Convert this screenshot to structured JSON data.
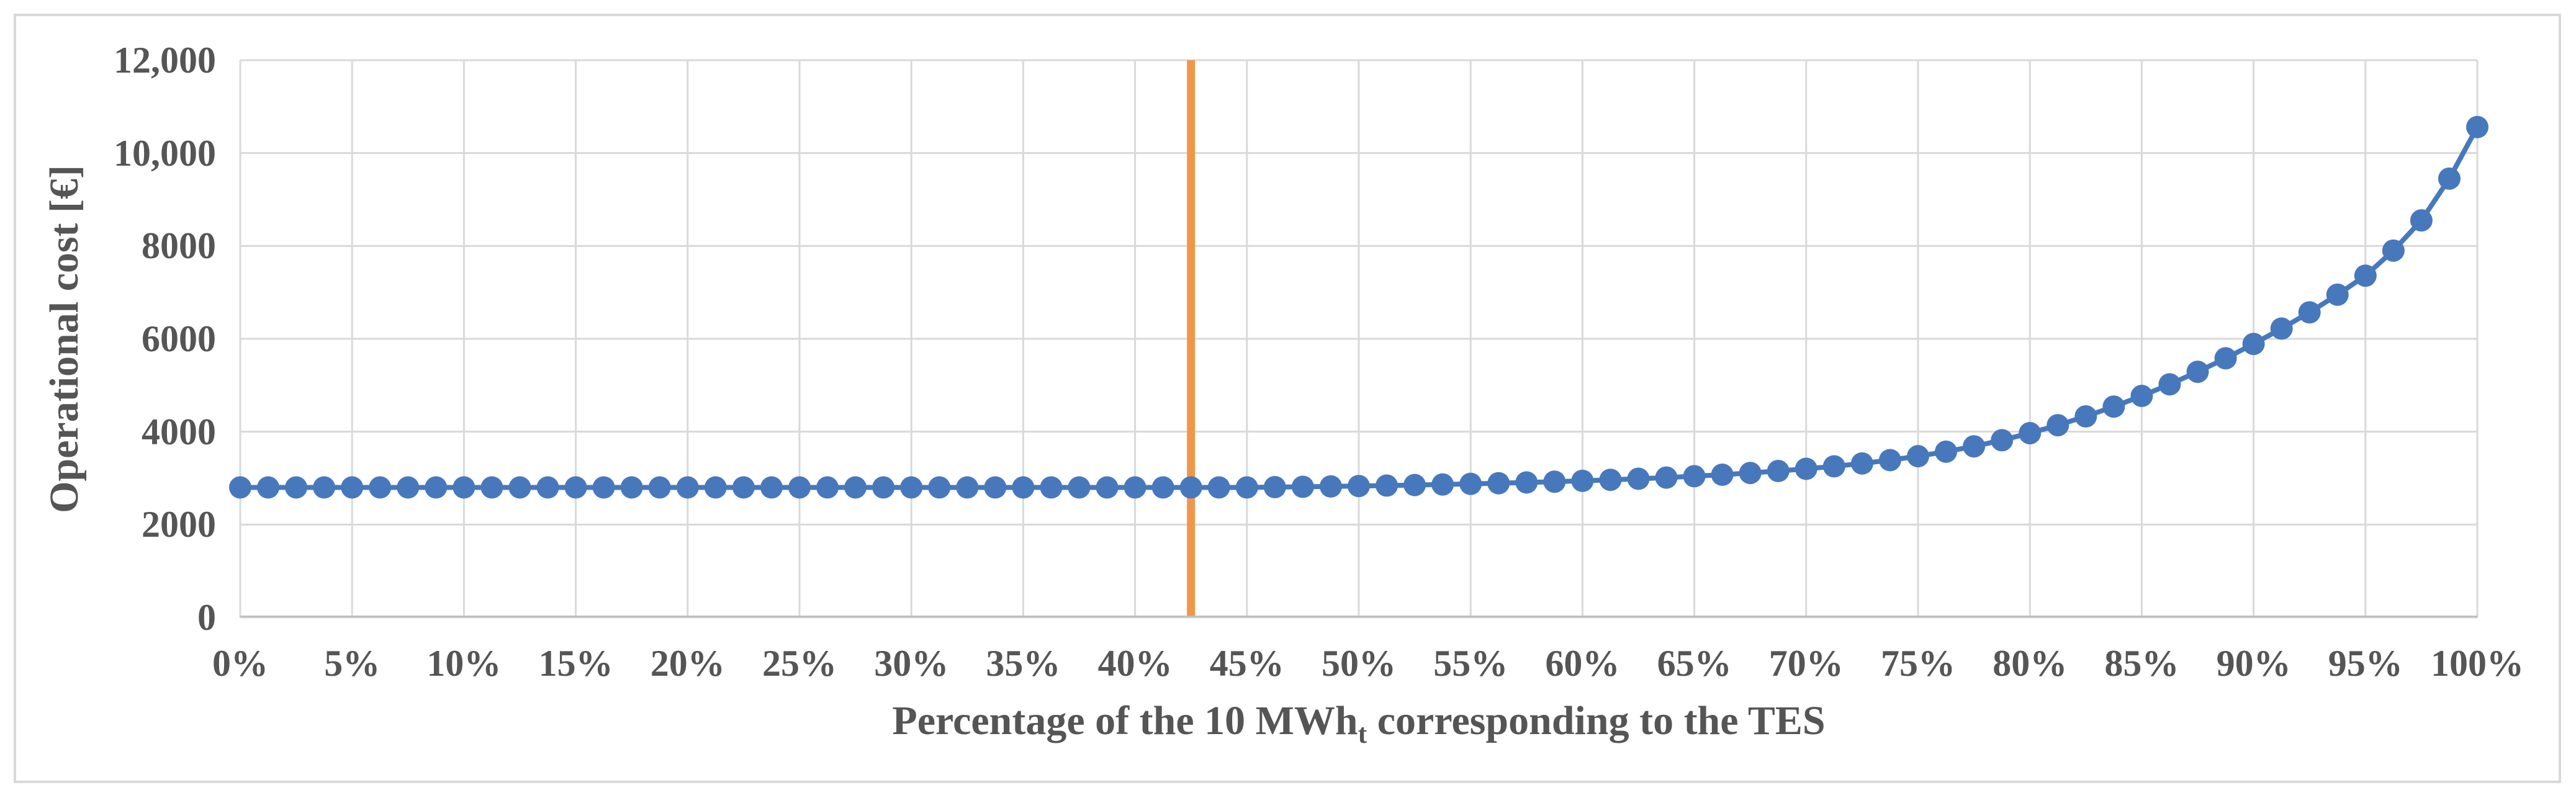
{
  "chart_data": {
    "type": "line",
    "title": "",
    "ylabel": "Operational cost [€]",
    "xlabel": {
      "text_before_sub": "Percentage of the 10 MWh",
      "subscript": "t",
      "text_after_sub": " corresponding to the TES"
    },
    "xlim": [
      0,
      100
    ],
    "ylim": [
      0,
      12000
    ],
    "grid": true,
    "legend": "none",
    "x": [
      0,
      1.25,
      2.5,
      3.75,
      5,
      6.25,
      7.5,
      8.75,
      10,
      11.25,
      12.5,
      13.75,
      15,
      16.25,
      17.5,
      18.75,
      20,
      21.25,
      22.5,
      23.75,
      25,
      26.25,
      27.5,
      28.75,
      30,
      31.25,
      32.5,
      33.75,
      35,
      36.25,
      37.5,
      38.75,
      40,
      41.25,
      42.5,
      43.75,
      45,
      46.25,
      47.5,
      48.75,
      50,
      51.25,
      52.5,
      53.75,
      55,
      56.25,
      57.5,
      58.75,
      60,
      61.25,
      62.5,
      63.75,
      65,
      66.25,
      67.5,
      68.75,
      70,
      71.25,
      72.5,
      73.75,
      75,
      76.25,
      77.5,
      78.75,
      80,
      81.25,
      82.5,
      83.75,
      85,
      86.25,
      87.5,
      88.75,
      90,
      91.25,
      92.5,
      93.75,
      95,
      96.25,
      97.5,
      98.75,
      100
    ],
    "values": [
      2800,
      2800,
      2800,
      2800,
      2800,
      2800,
      2800,
      2800,
      2800,
      2800,
      2800,
      2800,
      2800,
      2800,
      2800,
      2800,
      2800,
      2800,
      2800,
      2800,
      2800,
      2800,
      2800,
      2800,
      2800,
      2800,
      2800,
      2800,
      2800,
      2800,
      2800,
      2800,
      2800,
      2800,
      2800,
      2800,
      2800,
      2806,
      2813,
      2821,
      2830,
      2840,
      2851,
      2863,
      2876,
      2890,
      2906,
      2923,
      2942,
      2963,
      2986,
      3012,
      3041,
      3074,
      3111,
      3153,
      3200,
      3254,
      3316,
      3388,
      3472,
      3570,
      3684,
      3816,
      3968,
      4140,
      4330,
      4540,
      4770,
      5020,
      5290,
      5580,
      5890,
      6220,
      6570,
      6950,
      7360,
      7900,
      8550,
      9450,
      10560
    ],
    "x_ticks": [
      {
        "value": 0,
        "label": "0%"
      },
      {
        "value": 5,
        "label": "5%"
      },
      {
        "value": 10,
        "label": "10%"
      },
      {
        "value": 15,
        "label": "15%"
      },
      {
        "value": 20,
        "label": "20%"
      },
      {
        "value": 25,
        "label": "25%"
      },
      {
        "value": 30,
        "label": "30%"
      },
      {
        "value": 35,
        "label": "35%"
      },
      {
        "value": 40,
        "label": "40%"
      },
      {
        "value": 45,
        "label": "45%"
      },
      {
        "value": 50,
        "label": "50%"
      },
      {
        "value": 55,
        "label": "55%"
      },
      {
        "value": 60,
        "label": "60%"
      },
      {
        "value": 65,
        "label": "65%"
      },
      {
        "value": 70,
        "label": "70%"
      },
      {
        "value": 75,
        "label": "75%"
      },
      {
        "value": 80,
        "label": "80%"
      },
      {
        "value": 85,
        "label": "85%"
      },
      {
        "value": 90,
        "label": "90%"
      },
      {
        "value": 95,
        "label": "95%"
      },
      {
        "value": 100,
        "label": "100%"
      }
    ],
    "y_ticks": [
      {
        "value": 0,
        "label": "0"
      },
      {
        "value": 2000,
        "label": "2000"
      },
      {
        "value": 4000,
        "label": "4000"
      },
      {
        "value": 6000,
        "label": "6000"
      },
      {
        "value": 8000,
        "label": "8000"
      },
      {
        "value": 10000,
        "label": "10,000"
      },
      {
        "value": 12000,
        "label": "12,000"
      }
    ],
    "vline": {
      "x": 42.5,
      "color": "#f0964b",
      "stroke_width": 13
    },
    "colors": {
      "series": "#4878bc",
      "gridline": "#d9d9d9",
      "axis_line": "#bfbfbf",
      "text": "#555555",
      "figure_border": "#d9d9d9",
      "background": "#ffffff"
    }
  }
}
